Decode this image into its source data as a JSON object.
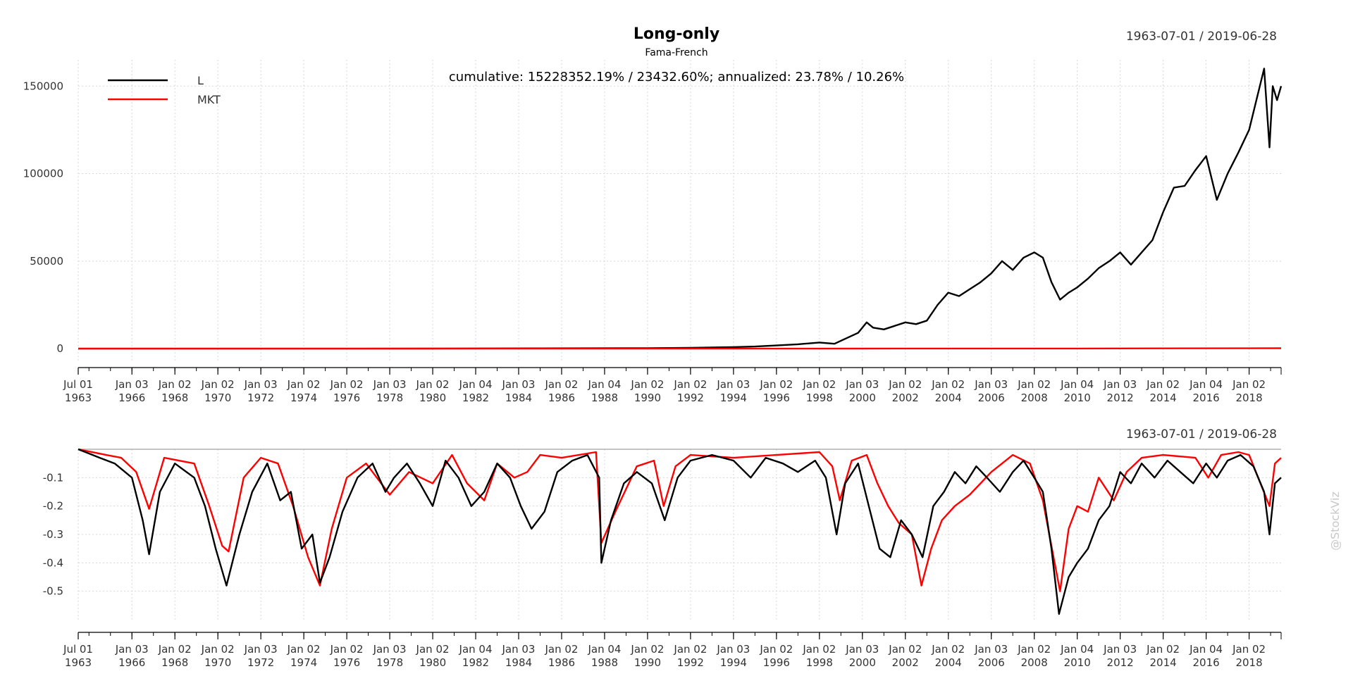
{
  "chart_data": [
    {
      "type": "line",
      "title": "Long-only",
      "subtitle": "Fama-French",
      "date_range": "1963-07-01 / 2019-06-28",
      "annotation": "cumulative: 15228352.19% / 23432.60%; annualized: 23.78% / 10.26%",
      "legend_position": "top-left",
      "grid": true,
      "ylim": [
        -8000,
        165000
      ],
      "y_ticks": [
        0,
        50000,
        100000,
        150000
      ],
      "y_tick_labels": [
        "0",
        "50000",
        "100000",
        "150000"
      ],
      "x_tick_labels": [
        {
          "line1": "Jul 01",
          "line2": "1963"
        },
        {
          "line1": "Jan 03",
          "line2": "1966"
        },
        {
          "line1": "Jan 02",
          "line2": "1968"
        },
        {
          "line1": "Jan 02",
          "line2": "1970"
        },
        {
          "line1": "Jan 03",
          "line2": "1972"
        },
        {
          "line1": "Jan 02",
          "line2": "1974"
        },
        {
          "line1": "Jan 02",
          "line2": "1976"
        },
        {
          "line1": "Jan 03",
          "line2": "1978"
        },
        {
          "line1": "Jan 02",
          "line2": "1980"
        },
        {
          "line1": "Jan 04",
          "line2": "1982"
        },
        {
          "line1": "Jan 03",
          "line2": "1984"
        },
        {
          "line1": "Jan 02",
          "line2": "1986"
        },
        {
          "line1": "Jan 04",
          "line2": "1988"
        },
        {
          "line1": "Jan 02",
          "line2": "1990"
        },
        {
          "line1": "Jan 02",
          "line2": "1992"
        },
        {
          "line1": "Jan 03",
          "line2": "1994"
        },
        {
          "line1": "Jan 02",
          "line2": "1996"
        },
        {
          "line1": "Jan 02",
          "line2": "1998"
        },
        {
          "line1": "Jan 03",
          "line2": "2000"
        },
        {
          "line1": "Jan 02",
          "line2": "2002"
        },
        {
          "line1": "Jan 02",
          "line2": "2004"
        },
        {
          "line1": "Jan 03",
          "line2": "2006"
        },
        {
          "line1": "Jan 02",
          "line2": "2008"
        },
        {
          "line1": "Jan 04",
          "line2": "2010"
        },
        {
          "line1": "Jan 03",
          "line2": "2012"
        },
        {
          "line1": "Jan 02",
          "line2": "2014"
        },
        {
          "line1": "Jan 04",
          "line2": "2016"
        },
        {
          "line1": "Jan 02",
          "line2": "2018"
        }
      ],
      "series": [
        {
          "name": "L",
          "color": "#000000",
          "x": [
            1963.5,
            1970,
            1980,
            1985,
            1990,
            1992,
            1994,
            1995,
            1996,
            1997,
            1998,
            1998.7,
            1999,
            1999.8,
            2000.2,
            2000.5,
            2001,
            2001.5,
            2002,
            2002.5,
            2003,
            2003.5,
            2004,
            2004.5,
            2005,
            2005.5,
            2006,
            2006.5,
            2007,
            2007.5,
            2008,
            2008.4,
            2008.8,
            2009.2,
            2009.6,
            2010,
            2010.5,
            2011,
            2011.5,
            2012,
            2012.5,
            2013,
            2013.5,
            2014,
            2014.5,
            2015,
            2015.5,
            2016,
            2016.5,
            2017,
            2017.5,
            2018,
            2018.3,
            2018.7,
            2018.95,
            2019.1,
            2019.3,
            2019.49
          ],
          "values": [
            0,
            5,
            40,
            150,
            300,
            500,
            900,
            1200,
            1800,
            2500,
            3500,
            2800,
            4500,
            9000,
            15000,
            12000,
            11000,
            13000,
            15000,
            14000,
            16000,
            25000,
            32000,
            30000,
            34000,
            38000,
            43000,
            50000,
            45000,
            52000,
            55000,
            52000,
            38000,
            28000,
            32000,
            35000,
            40000,
            46000,
            50000,
            55000,
            48000,
            55000,
            62000,
            78000,
            92000,
            93000,
            102000,
            110000,
            85000,
            100000,
            112000,
            125000,
            140000,
            160000,
            115000,
            150000,
            142000,
            150000
          ]
        },
        {
          "name": "MKT",
          "color": "#ff0000",
          "x": [
            1963.5,
            1980,
            2000,
            2010,
            2019.49
          ],
          "values": [
            0,
            5,
            60,
            80,
            234
          ]
        }
      ]
    },
    {
      "type": "line",
      "date_range": "1963-07-01 / 2019-06-28",
      "grid": true,
      "ylim": [
        -0.6,
        0
      ],
      "y_ticks": [
        -0.1,
        -0.2,
        -0.3,
        -0.4,
        -0.5
      ],
      "y_tick_labels": [
        "-0.1",
        "-0.2",
        "-0.3",
        "-0.4",
        "-0.5"
      ],
      "x_tick_labels_same_as_above": true,
      "series": [
        {
          "name": "MKT",
          "color": "#ff0000",
          "x": [
            1963.5,
            1964.8,
            1965.5,
            1966.2,
            1966.8,
            1967.5,
            1968.9,
            1969.6,
            1970.2,
            1970.5,
            1971.2,
            1972.0,
            1972.8,
            1973.5,
            1974.2,
            1974.75,
            1975.3,
            1976.0,
            1976.9,
            1978.0,
            1978.9,
            1980.0,
            1980.9,
            1981.6,
            1982.4,
            1983.0,
            1983.8,
            1984.4,
            1985.0,
            1986.0,
            1987.6,
            1987.85,
            1988.5,
            1989.5,
            1990.3,
            1990.75,
            1991.3,
            1992.0,
            1994.0,
            1996.0,
            1998.0,
            1998.6,
            1998.95,
            1999.5,
            2000.2,
            2000.7,
            2001.2,
            2001.7,
            2002.3,
            2002.75,
            2003.2,
            2003.7,
            2004.3,
            2005.0,
            2006.0,
            2007.0,
            2007.8,
            2008.4,
            2008.9,
            2009.2,
            2009.6,
            2010.0,
            2010.5,
            2011.0,
            2011.7,
            2012.3,
            2013.0,
            2014.0,
            2015.5,
            2016.1,
            2016.7,
            2017.5,
            2018.0,
            2018.95,
            2019.2,
            2019.49
          ],
          "values": [
            0,
            -0.02,
            -0.03,
            -0.08,
            -0.21,
            -0.03,
            -0.05,
            -0.2,
            -0.34,
            -0.36,
            -0.1,
            -0.03,
            -0.05,
            -0.2,
            -0.38,
            -0.48,
            -0.28,
            -0.1,
            -0.05,
            -0.16,
            -0.08,
            -0.12,
            -0.02,
            -0.12,
            -0.18,
            -0.05,
            -0.1,
            -0.08,
            -0.02,
            -0.03,
            -0.01,
            -0.33,
            -0.22,
            -0.06,
            -0.04,
            -0.2,
            -0.06,
            -0.02,
            -0.03,
            -0.02,
            -0.01,
            -0.06,
            -0.18,
            -0.04,
            -0.02,
            -0.12,
            -0.2,
            -0.26,
            -0.3,
            -0.48,
            -0.35,
            -0.25,
            -0.2,
            -0.16,
            -0.08,
            -0.02,
            -0.05,
            -0.18,
            -0.38,
            -0.5,
            -0.28,
            -0.2,
            -0.22,
            -0.1,
            -0.18,
            -0.08,
            -0.03,
            -0.02,
            -0.03,
            -0.1,
            -0.02,
            -0.01,
            -0.02,
            -0.2,
            -0.05,
            -0.03
          ]
        },
        {
          "name": "L",
          "color": "#000000",
          "x": [
            1963.5,
            1964.5,
            1965.2,
            1966.0,
            1966.5,
            1966.8,
            1967.3,
            1968.0,
            1968.9,
            1969.4,
            1969.9,
            1970.4,
            1971.0,
            1971.6,
            1972.3,
            1972.9,
            1973.4,
            1973.9,
            1974.4,
            1974.75,
            1975.2,
            1975.8,
            1976.5,
            1977.2,
            1977.8,
            1978.2,
            1978.8,
            1979.4,
            1980.0,
            1980.6,
            1981.2,
            1981.8,
            1982.4,
            1983.0,
            1983.6,
            1984.1,
            1984.6,
            1985.2,
            1985.8,
            1986.5,
            1987.2,
            1987.75,
            1987.85,
            1988.3,
            1988.9,
            1989.5,
            1990.2,
            1990.8,
            1991.4,
            1992.0,
            1993.0,
            1994.0,
            1994.8,
            1995.5,
            1996.3,
            1997.0,
            1997.8,
            1998.3,
            1998.8,
            1999.2,
            1999.8,
            2000.3,
            2000.8,
            2001.3,
            2001.8,
            2002.3,
            2002.8,
            2003.3,
            2003.8,
            2004.3,
            2004.8,
            2005.3,
            2005.8,
            2006.4,
            2007.0,
            2007.5,
            2008.0,
            2008.4,
            2008.8,
            2009.15,
            2009.6,
            2010.0,
            2010.5,
            2011.0,
            2011.5,
            2012.0,
            2012.5,
            2013.0,
            2013.6,
            2014.2,
            2014.8,
            2015.4,
            2016.0,
            2016.5,
            2017.0,
            2017.6,
            2018.2,
            2018.7,
            2018.95,
            2019.2,
            2019.49
          ],
          "values": [
            0,
            -0.03,
            -0.05,
            -0.1,
            -0.25,
            -0.37,
            -0.15,
            -0.05,
            -0.1,
            -0.2,
            -0.35,
            -0.48,
            -0.3,
            -0.15,
            -0.05,
            -0.18,
            -0.15,
            -0.35,
            -0.3,
            -0.47,
            -0.38,
            -0.22,
            -0.1,
            -0.05,
            -0.15,
            -0.1,
            -0.05,
            -0.12,
            -0.2,
            -0.04,
            -0.1,
            -0.2,
            -0.15,
            -0.05,
            -0.1,
            -0.2,
            -0.28,
            -0.22,
            -0.08,
            -0.04,
            -0.02,
            -0.1,
            -0.4,
            -0.25,
            -0.12,
            -0.08,
            -0.12,
            -0.25,
            -0.1,
            -0.04,
            -0.02,
            -0.04,
            -0.1,
            -0.03,
            -0.05,
            -0.08,
            -0.04,
            -0.1,
            -0.3,
            -0.12,
            -0.05,
            -0.2,
            -0.35,
            -0.38,
            -0.25,
            -0.3,
            -0.38,
            -0.2,
            -0.15,
            -0.08,
            -0.12,
            -0.06,
            -0.1,
            -0.15,
            -0.08,
            -0.04,
            -0.1,
            -0.15,
            -0.35,
            -0.58,
            -0.45,
            -0.4,
            -0.35,
            -0.25,
            -0.2,
            -0.08,
            -0.12,
            -0.05,
            -0.1,
            -0.04,
            -0.08,
            -0.12,
            -0.05,
            -0.1,
            -0.04,
            -0.02,
            -0.06,
            -0.15,
            -0.3,
            -0.12,
            -0.1
          ]
        }
      ]
    }
  ],
  "watermark": "@StockViz"
}
